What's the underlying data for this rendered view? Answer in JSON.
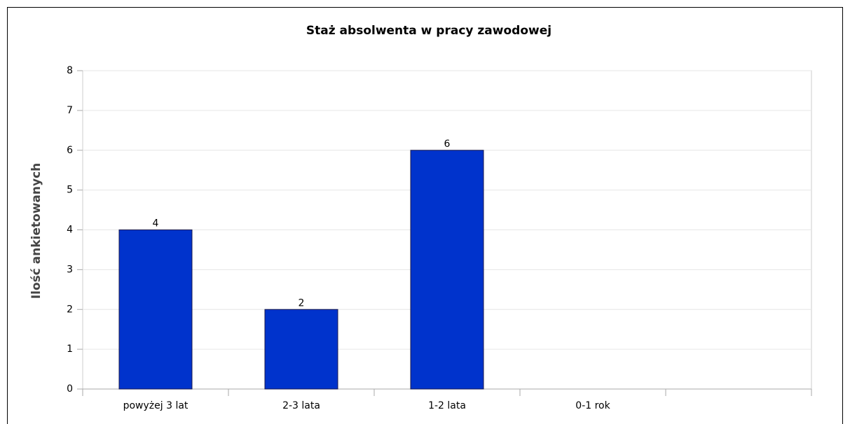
{
  "chart_data": {
    "type": "bar",
    "title": "Staż absolwenta w pracy zawodowej",
    "y_label": "Ilość ankietowanych",
    "categories": [
      "powyżej 3 lat",
      "2-3 lata",
      "1-2 lata",
      "0-1 rok",
      null
    ],
    "values": [
      4,
      2,
      6,
      null,
      null
    ],
    "color": "#0033cc",
    "ylim": [
      0,
      8
    ],
    "yticks": [
      0,
      1,
      2,
      3,
      4,
      5,
      6,
      7,
      8
    ],
    "grid": true
  }
}
